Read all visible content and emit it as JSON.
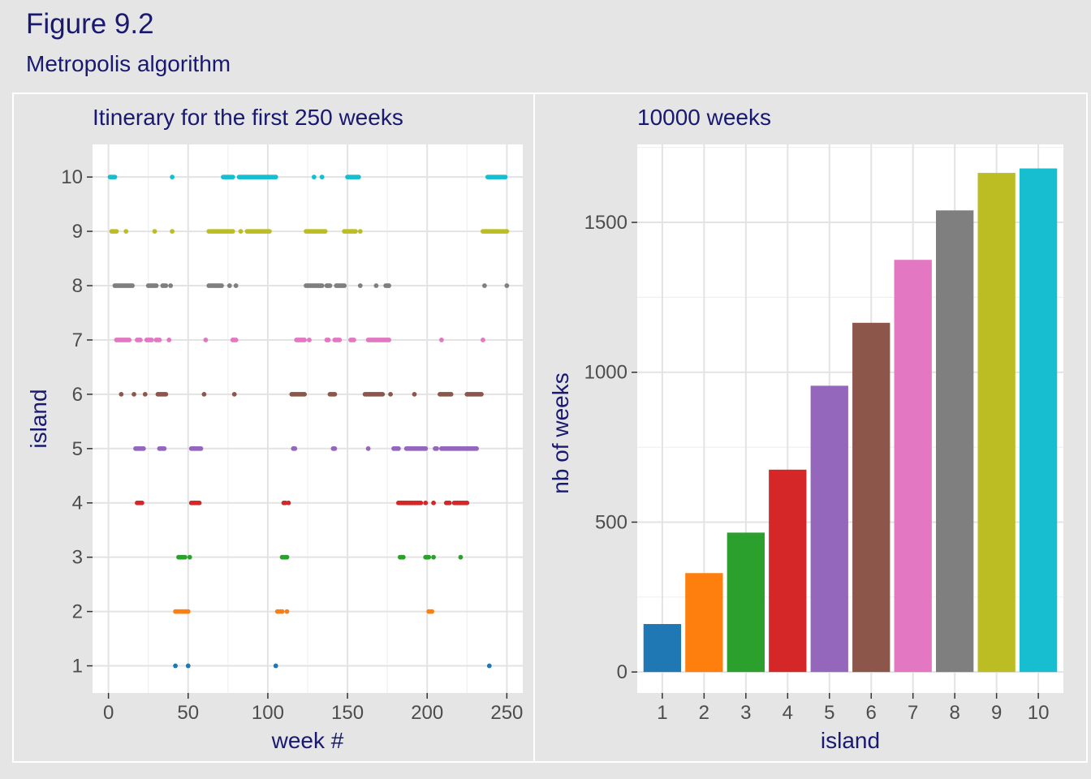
{
  "figure": {
    "title": "Figure 9.2",
    "subtitle": "Metropolis algorithm"
  },
  "chart_data": [
    {
      "type": "scatter",
      "title": "Itinerary for the first 250 weeks",
      "xlabel": "week #",
      "ylabel": "island",
      "xlim": [
        -10,
        260
      ],
      "ylim": [
        0.5,
        10.6
      ],
      "xticks": [
        0,
        50,
        100,
        150,
        200,
        250
      ],
      "yticks": [
        1,
        2,
        3,
        4,
        5,
        6,
        7,
        8,
        9,
        10
      ],
      "grid": true,
      "legend": "none",
      "series": [
        {
          "island": 1,
          "color": "#1f77b4",
          "x": [
            42,
            50,
            105,
            239
          ]
        },
        {
          "island": 2,
          "color": "#ff7f0e",
          "x": [
            42,
            43,
            44,
            45,
            46,
            47,
            48,
            49,
            50,
            106,
            107,
            108,
            109,
            112,
            201,
            202,
            203
          ]
        },
        {
          "island": 3,
          "color": "#2ca02c",
          "x": [
            44,
            45,
            46,
            47,
            48,
            51,
            109,
            110,
            111,
            112,
            183,
            184,
            185,
            199,
            200,
            201,
            204,
            221
          ]
        },
        {
          "island": 4,
          "color": "#d62728",
          "x": [
            18,
            19,
            20,
            21,
            52,
            53,
            54,
            55,
            56,
            57,
            110,
            111,
            113,
            182,
            183,
            184,
            185,
            186,
            187,
            188,
            189,
            190,
            191,
            192,
            193,
            194,
            195,
            196,
            199,
            204,
            212,
            213,
            214,
            217,
            218,
            219,
            220,
            221,
            222,
            223,
            224,
            225
          ]
        },
        {
          "island": 5,
          "color": "#9467bd",
          "x": [
            17,
            18,
            19,
            20,
            21,
            22,
            32,
            33,
            34,
            35,
            52,
            53,
            54,
            55,
            56,
            57,
            58,
            116,
            117,
            141,
            142,
            163,
            179,
            180,
            181,
            182,
            187,
            188,
            189,
            190,
            191,
            192,
            193,
            194,
            195,
            196,
            197,
            198,
            199,
            205,
            206,
            209,
            210,
            211,
            212,
            213,
            214,
            215,
            216,
            217,
            218,
            219,
            220,
            221,
            222,
            223,
            224,
            225,
            226,
            227,
            228,
            229,
            230,
            231
          ]
        },
        {
          "island": 6,
          "color": "#8c564b",
          "x": [
            8,
            16,
            23,
            31,
            32,
            33,
            34,
            35,
            36,
            60,
            79,
            115,
            116,
            117,
            118,
            119,
            120,
            121,
            122,
            123,
            139,
            140,
            141,
            142,
            161,
            162,
            163,
            164,
            165,
            166,
            167,
            168,
            169,
            170,
            171,
            172,
            177,
            192,
            208,
            209,
            210,
            211,
            212,
            213,
            214,
            215,
            225,
            226,
            227,
            228,
            229,
            230,
            231,
            232,
            233,
            234
          ]
        },
        {
          "island": 7,
          "color": "#e377c2",
          "x": [
            5,
            6,
            7,
            8,
            9,
            10,
            11,
            12,
            13,
            18,
            19,
            20,
            24,
            25,
            26,
            27,
            30,
            31,
            32,
            38,
            61,
            78,
            79,
            80,
            118,
            119,
            120,
            121,
            122,
            123,
            126,
            137,
            138,
            142,
            143,
            144,
            145,
            152,
            153,
            154,
            163,
            164,
            165,
            166,
            167,
            168,
            169,
            170,
            171,
            172,
            173,
            174,
            175,
            176,
            209,
            235
          ]
        },
        {
          "island": 8,
          "color": "#7f7f7f",
          "x": [
            4,
            5,
            6,
            7,
            8,
            9,
            10,
            11,
            12,
            13,
            14,
            15,
            25,
            26,
            27,
            28,
            29,
            30,
            34,
            35,
            36,
            39,
            63,
            64,
            65,
            66,
            67,
            68,
            69,
            70,
            71,
            76,
            80,
            124,
            125,
            126,
            127,
            128,
            129,
            130,
            131,
            132,
            133,
            134,
            137,
            138,
            139,
            143,
            144,
            145,
            146,
            147,
            148,
            158,
            168,
            174,
            175,
            176,
            236,
            250
          ]
        },
        {
          "island": 9,
          "color": "#bcbd22",
          "x": [
            2,
            3,
            4,
            5,
            11,
            29,
            40,
            63,
            64,
            65,
            66,
            67,
            68,
            69,
            70,
            71,
            72,
            73,
            74,
            75,
            76,
            77,
            78,
            83,
            87,
            88,
            89,
            90,
            91,
            92,
            93,
            94,
            95,
            96,
            97,
            98,
            99,
            100,
            101,
            124,
            125,
            126,
            127,
            128,
            129,
            130,
            131,
            132,
            133,
            134,
            135,
            136,
            148,
            149,
            150,
            151,
            152,
            153,
            154,
            155,
            158,
            235,
            236,
            237,
            238,
            239,
            240,
            241,
            242,
            243,
            244,
            245,
            246,
            247,
            248,
            249,
            250
          ]
        },
        {
          "island": 10,
          "color": "#17becf",
          "x": [
            1,
            2,
            3,
            4,
            40,
            72,
            73,
            74,
            75,
            76,
            77,
            78,
            82,
            83,
            84,
            85,
            86,
            87,
            88,
            89,
            90,
            91,
            92,
            93,
            94,
            95,
            96,
            97,
            98,
            99,
            100,
            101,
            102,
            103,
            104,
            105,
            129,
            134,
            150,
            151,
            152,
            153,
            154,
            155,
            156,
            157,
            238,
            239,
            240,
            241,
            242,
            243,
            244,
            245,
            246,
            247,
            248,
            249
          ]
        }
      ]
    },
    {
      "type": "bar",
      "title": "10000 weeks",
      "xlabel": "island",
      "ylabel": "nb of weeks",
      "categories": [
        "1",
        "2",
        "3",
        "4",
        "5",
        "6",
        "7",
        "8",
        "9",
        "10"
      ],
      "values": [
        160,
        330,
        465,
        675,
        955,
        1165,
        1375,
        1540,
        1665,
        1680
      ],
      "colors": [
        "#1f77b4",
        "#ff7f0e",
        "#2ca02c",
        "#d62728",
        "#9467bd",
        "#8c564b",
        "#e377c2",
        "#7f7f7f",
        "#bcbd22",
        "#17becf"
      ],
      "ylim": [
        -70,
        1760
      ],
      "yticks": [
        0,
        500,
        1000,
        1500
      ],
      "grid": true,
      "legend": "none"
    }
  ]
}
